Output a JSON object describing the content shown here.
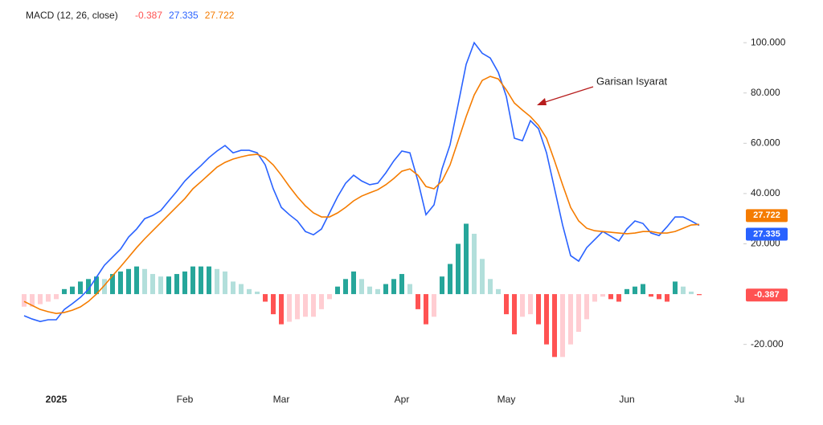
{
  "chart_data": {
    "type": "macd",
    "title": "MACD (12, 26, close)",
    "annotation": "Garisan Isyarat",
    "categories": [
      null,
      null,
      null,
      null,
      "2025",
      null,
      null,
      null,
      null,
      null,
      null,
      null,
      null,
      null,
      null,
      null,
      null,
      null,
      null,
      null,
      "Feb",
      null,
      null,
      null,
      null,
      null,
      null,
      null,
      null,
      null,
      null,
      null,
      "Mar",
      null,
      null,
      null,
      null,
      null,
      null,
      null,
      null,
      null,
      null,
      null,
      null,
      null,
      null,
      "Apr",
      null,
      null,
      null,
      null,
      null,
      null,
      null,
      null,
      null,
      null,
      null,
      null,
      "May",
      null,
      null,
      null,
      null,
      null,
      null,
      null,
      null,
      null,
      null,
      null,
      null,
      null,
      null,
      "Jun",
      null,
      null,
      null,
      null,
      null,
      null,
      null,
      null,
      null,
      null,
      null,
      null,
      null,
      "Ju"
    ],
    "series": [
      {
        "type": "bar",
        "colors": [
          "#26a69a",
          "#b2dfdb",
          "#ff5252",
          "#ffcdd2"
        ],
        "values": [
          -5,
          -5,
          -4,
          -3,
          -2,
          2,
          3,
          5,
          6,
          7,
          6,
          8,
          9,
          10,
          11,
          10,
          8,
          7,
          7,
          8,
          9,
          11,
          11,
          11,
          10,
          9,
          5,
          4,
          2,
          1,
          -3,
          -8,
          -12,
          -11,
          -10,
          -9,
          -9,
          -6,
          -2,
          3,
          6,
          9,
          6,
          3,
          2,
          4,
          6,
          8,
          4,
          -6,
          -12,
          -9,
          7,
          12,
          20,
          28,
          24,
          14,
          6,
          2,
          -8,
          -16,
          -9,
          -8,
          -12,
          -20,
          -25,
          -25,
          -20,
          -15,
          -10,
          -3,
          -1,
          -2,
          -3,
          2,
          3,
          4,
          -1,
          -2,
          -3,
          5,
          3,
          1,
          -0.387,
          null,
          null,
          null,
          null,
          null
        ]
      },
      {
        "type": "line",
        "color": "#2962ff",
        "values": [
          -8.6,
          -9.9,
          -10.9,
          -10.2,
          -10.2,
          -6.1,
          -3.8,
          -1.3,
          1.9,
          6.7,
          11.5,
          14.7,
          17.9,
          22.7,
          25.9,
          30.0,
          31.3,
          33.2,
          37.1,
          40.9,
          45.0,
          48.2,
          51.1,
          54.3,
          56.9,
          59.1,
          56.2,
          57.2,
          57.2,
          56.2,
          51.4,
          41.9,
          34.5,
          31.6,
          29.1,
          24.9,
          23.6,
          25.9,
          32.3,
          38.7,
          44.1,
          47.3,
          45.0,
          43.5,
          44.1,
          48.2,
          53.0,
          56.9,
          56.2,
          45.0,
          31.6,
          35.5,
          49.8,
          59.4,
          75.4,
          91.4,
          100.0,
          95.8,
          93.9,
          88.2,
          78.6,
          62.0,
          61.0,
          69.0,
          65.8,
          56.2,
          41.9,
          27.5,
          15.3,
          13.1,
          18.5,
          21.7,
          24.9,
          23.0,
          21.1,
          25.9,
          29.1,
          28.1,
          24.3,
          23.3,
          26.8,
          30.7,
          30.7,
          29.1,
          27.335,
          null,
          null,
          null,
          null,
          null
        ]
      },
      {
        "type": "line",
        "color": "#f57c00",
        "values": [
          -2.9,
          -4.5,
          -6.1,
          -7.0,
          -7.7,
          -7.3,
          -6.4,
          -5.1,
          -2.9,
          0.0,
          3.5,
          7.3,
          10.9,
          14.7,
          18.5,
          22.0,
          25.2,
          28.4,
          31.6,
          34.8,
          38.0,
          41.9,
          44.7,
          47.6,
          50.5,
          52.4,
          53.7,
          54.6,
          55.3,
          55.6,
          54.3,
          51.4,
          47.3,
          42.8,
          38.7,
          35.1,
          32.3,
          30.7,
          30.7,
          32.3,
          34.5,
          37.1,
          39.0,
          40.3,
          41.5,
          43.5,
          46.0,
          48.9,
          49.8,
          47.3,
          42.8,
          41.9,
          45.0,
          51.4,
          61.0,
          70.6,
          79.2,
          85.0,
          86.6,
          85.6,
          81.2,
          76.0,
          73.2,
          70.6,
          67.1,
          62.0,
          53.0,
          43.5,
          34.5,
          29.1,
          26.2,
          25.2,
          24.9,
          24.6,
          24.3,
          24.0,
          24.3,
          24.9,
          24.9,
          24.3,
          24.3,
          24.9,
          26.2,
          27.5,
          27.722,
          null,
          null,
          null,
          null,
          null
        ]
      }
    ],
    "ylim": [
      -36.4,
      104.2
    ],
    "yticks": [
      {
        "value": 100,
        "label": "100.000"
      },
      {
        "value": 80,
        "label": "80.000"
      },
      {
        "value": 60,
        "label": "60.000"
      },
      {
        "value": 40,
        "label": "40.000"
      },
      {
        "value": 20,
        "label": "20.000"
      },
      {
        "value": -20,
        "label": "-20.000"
      }
    ]
  }
}
